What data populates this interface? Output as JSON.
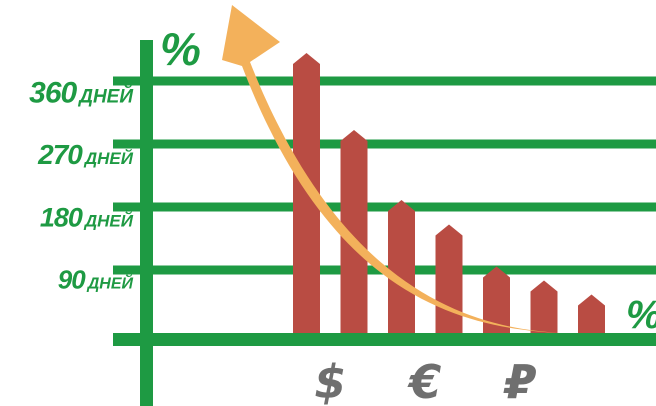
{
  "chart_data": {
    "type": "bar",
    "title": "",
    "y_unit_label": "%",
    "x_unit_label": "%",
    "y_tick_labels": [
      {
        "value": 90,
        "number": "90",
        "unit": "ДНЕЙ"
      },
      {
        "value": 180,
        "number": "180",
        "unit": "ДНЕЙ"
      },
      {
        "value": 270,
        "number": "270",
        "unit": "ДНЕЙ"
      },
      {
        "value": 360,
        "number": "360",
        "unit": "ДНЕЙ"
      }
    ],
    "x_tick_labels": [
      {
        "label": "$",
        "between": [
          0,
          1
        ]
      },
      {
        "label": "€",
        "between": [
          2,
          3
        ]
      },
      {
        "label": "₽",
        "between": [
          4,
          5
        ]
      }
    ],
    "values": [
      400,
      290,
      190,
      155,
      95,
      75,
      55
    ],
    "ylim": [
      0,
      450
    ],
    "grid": true,
    "colors": {
      "axis": "#1e9a43",
      "bar": "#b94c43",
      "arrow": "#f3b15b",
      "currency": "#6f6f6f"
    }
  }
}
